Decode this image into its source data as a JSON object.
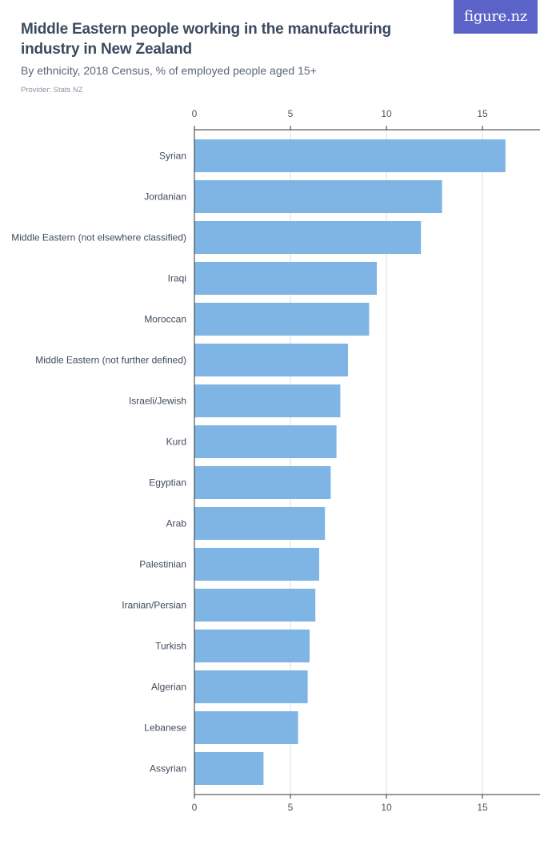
{
  "header": {
    "title": "Middle Eastern people working in the manufacturing industry in New Zealand",
    "subtitle": "By ethnicity, 2018 Census, % of employed people aged 15+",
    "provider": "Provider: Stats NZ",
    "brand": "figure.nz"
  },
  "colors": {
    "bar": "#7eb5e4",
    "brand_bg": "#5b63c9",
    "grid": "#d9dde2",
    "axis": "#333333"
  },
  "chart_data": {
    "type": "bar",
    "orientation": "horizontal",
    "categories": [
      "Syrian",
      "Jordanian",
      "Middle Eastern (not elsewhere classified)",
      "Iraqi",
      "Moroccan",
      "Middle Eastern (not further defined)",
      "Israeli/Jewish",
      "Kurd",
      "Egyptian",
      "Arab",
      "Palestinian",
      "Iranian/Persian",
      "Turkish",
      "Algerian",
      "Lebanese",
      "Assyrian"
    ],
    "values": [
      16.2,
      12.9,
      11.8,
      9.5,
      9.1,
      8.0,
      7.6,
      7.4,
      7.1,
      6.8,
      6.5,
      6.3,
      6.0,
      5.9,
      5.4,
      3.6
    ],
    "xlim": [
      0,
      18
    ],
    "xticks": [
      0,
      5,
      10,
      15
    ],
    "tick_labels": [
      "0",
      "5",
      "10",
      "15"
    ],
    "title": "Middle Eastern people working in the manufacturing industry in New Zealand",
    "xlabel": "",
    "ylabel": "",
    "grid": true,
    "axes_labels_top_and_bottom": true,
    "legend": "none"
  }
}
